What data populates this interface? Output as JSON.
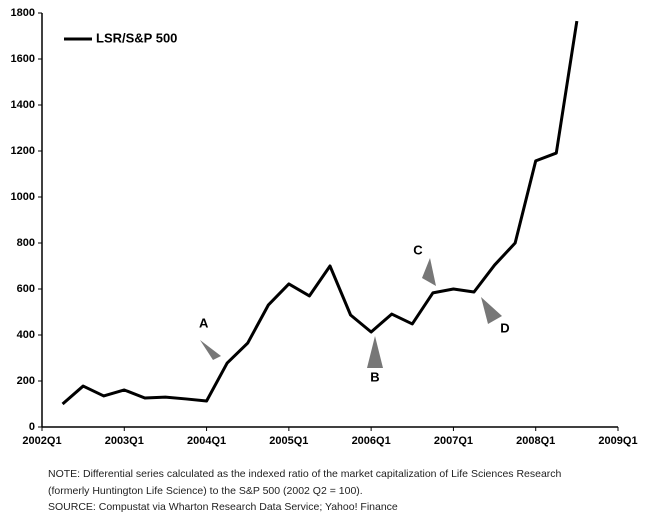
{
  "chart_data": {
    "type": "line",
    "series": [
      {
        "name": "LSR/S&P 500",
        "color": "#000000",
        "values": [
          100,
          178,
          135,
          161,
          126,
          130,
          122,
          113,
          278,
          365,
          530,
          622,
          570,
          700,
          487,
          413,
          491,
          448,
          583,
          600,
          587,
          704,
          800,
          1157,
          1191,
          1765
        ]
      }
    ],
    "x": [
      2002.25,
      2002.5,
      2002.75,
      2003,
      2003.25,
      2003.5,
      2003.75,
      2004,
      2004.25,
      2004.5,
      2004.75,
      2005,
      2005.25,
      2005.5,
      2005.75,
      2006,
      2006.25,
      2006.5,
      2006.75,
      2007,
      2007.25,
      2007.5,
      2007.75,
      2008,
      2008.25,
      2008.5
    ],
    "xlim": [
      2002,
      2009
    ],
    "xticks": [
      {
        "value": 2002,
        "label": "2002Q1"
      },
      {
        "value": 2003,
        "label": "2003Q1"
      },
      {
        "value": 2004,
        "label": "2004Q1"
      },
      {
        "value": 2005,
        "label": "2005Q1"
      },
      {
        "value": 2006,
        "label": "2006Q1"
      },
      {
        "value": 2007,
        "label": "2007Q1"
      },
      {
        "value": 2008,
        "label": "2008Q1"
      },
      {
        "value": 2009,
        "label": "2009Q1"
      }
    ],
    "ylim": [
      0,
      1800
    ],
    "yticks": [
      0,
      200,
      400,
      600,
      800,
      1000,
      1200,
      1400,
      1600,
      1800
    ],
    "legend": "top-left",
    "annotations": [
      "A",
      "B",
      "C",
      "D"
    ],
    "notes": [
      "NOTE: Differential series calculated as the indexed ratio of the market capitalization of Life Sciences Research",
      "(formerly Huntington Life Science) to the S&P 500 (2002 Q2 = 100).",
      "SOURCE: Compustat via Wharton Research Data Service; Yahoo! Finance"
    ]
  }
}
